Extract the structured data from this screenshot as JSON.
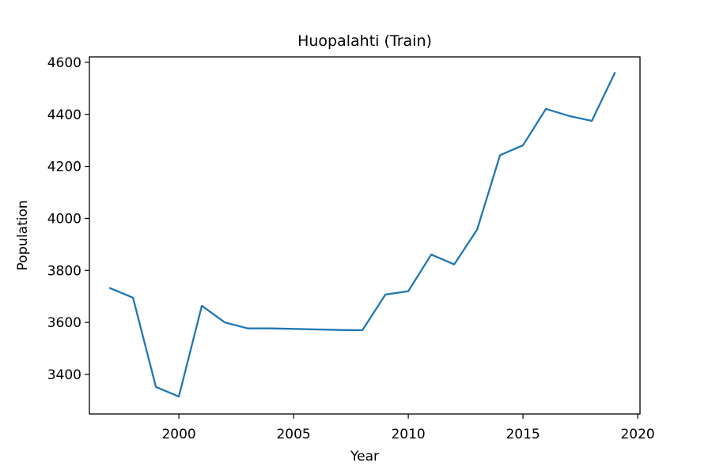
{
  "chart_data": {
    "type": "line",
    "title": "Huopalahti (Train)",
    "xlabel": "Year",
    "ylabel": "Population",
    "xlim": [
      1996.1,
      2020.1
    ],
    "ylim": [
      3248,
      4621
    ],
    "xticks": [
      2000,
      2005,
      2010,
      2015,
      2020
    ],
    "yticks": [
      3400,
      3600,
      3800,
      4000,
      4200,
      4400,
      4600
    ],
    "grid": false,
    "series": [
      {
        "color": "#1f77b4",
        "x": [
          1997,
          1998,
          1999,
          2000,
          2001,
          2002,
          2003,
          2004,
          2005,
          2006,
          2007,
          2008,
          2009,
          2010,
          2011,
          2012,
          2013,
          2014,
          2015,
          2016,
          2017,
          2018,
          2019
        ],
        "values": [
          3732,
          3695,
          3352,
          3315,
          3664,
          3600,
          3577,
          3577,
          3575,
          3573,
          3571,
          3570,
          3707,
          3720,
          3861,
          3823,
          3957,
          4243,
          4281,
          4421,
          4394,
          4375,
          4559
        ]
      }
    ]
  }
}
